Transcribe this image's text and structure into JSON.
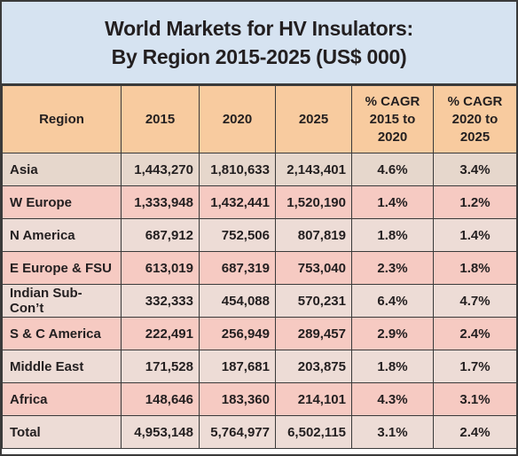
{
  "header": {
    "title_lines": [
      "World Markets for HV Insulators:",
      "By Region 2015-2025 (US$ 000)"
    ]
  },
  "table": {
    "columns": [
      [
        "Region"
      ],
      [
        "2015"
      ],
      [
        "2020"
      ],
      [
        "2025"
      ],
      [
        "% CAGR",
        "2015 to",
        "2020"
      ],
      [
        "% CAGR",
        "2020 to",
        "2025"
      ]
    ],
    "rows": [
      [
        "Asia",
        "1,443,270",
        "1,810,633",
        "2,143,401",
        "4.6%",
        "3.4%"
      ],
      [
        "W Europe",
        "1,333,948",
        "1,432,441",
        "1,520,190",
        "1.4%",
        "1.2%"
      ],
      [
        "N America",
        "687,912",
        "752,506",
        "807,819",
        "1.8%",
        "1.4%"
      ],
      [
        "E Europe & FSU",
        "613,019",
        "687,319",
        "753,040",
        "2.3%",
        "1.8%"
      ],
      [
        "Indian Sub-Con’t",
        "332,333",
        "454,088",
        "570,231",
        "6.4%",
        "4.7%"
      ],
      [
        "S & C America",
        "222,491",
        "256,949",
        "289,457",
        "2.9%",
        "2.4%"
      ],
      [
        "Middle East",
        "171,528",
        "187,681",
        "203,875",
        "1.8%",
        "1.7%"
      ],
      [
        "Africa",
        "148,646",
        "183,360",
        "214,101",
        "4.3%",
        "3.1%"
      ],
      [
        "Total",
        "4,953,148",
        "5,764,977",
        "6,502,115",
        "3.1%",
        "2.4%"
      ]
    ]
  }
}
